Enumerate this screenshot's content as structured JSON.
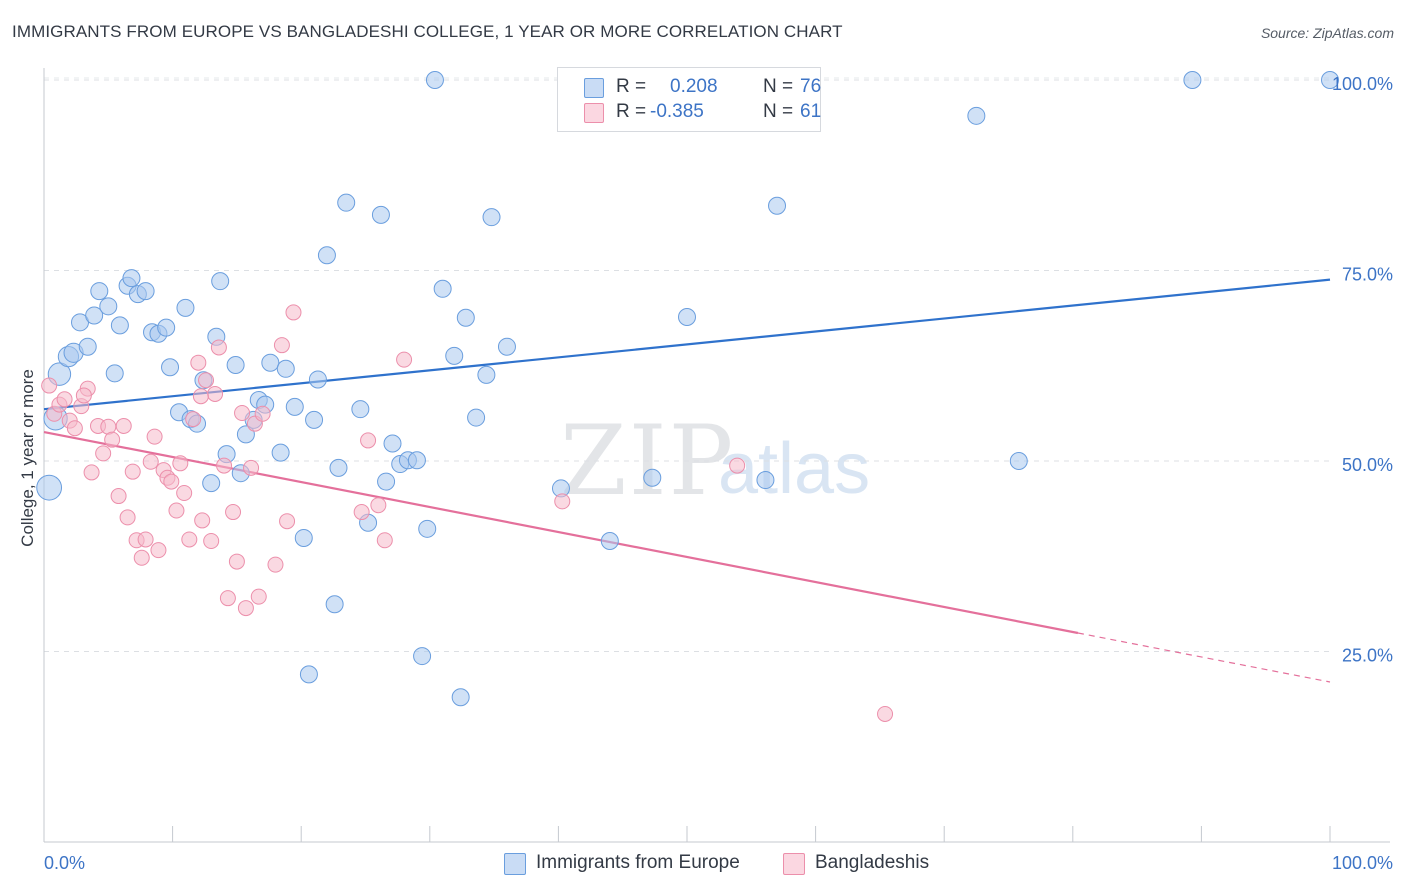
{
  "header": {
    "title": "IMMIGRANTS FROM EUROPE VS BANGLADESHI COLLEGE, 1 YEAR OR MORE CORRELATION CHART",
    "source": "Source: ZipAtlas.com"
  },
  "watermark": {
    "zip": "ZIP",
    "atlas": "atlas"
  },
  "legend": {
    "rows": [
      {
        "r_label": "R =",
        "r_value": "0.208",
        "n_label": "N =",
        "n_value": "76",
        "color": "#a9c8ef"
      },
      {
        "r_label": "R =",
        "r_value": "-0.385",
        "n_label": "N =",
        "n_value": "61",
        "color": "#f6b9ca"
      }
    ]
  },
  "bottom_legend": {
    "items": [
      {
        "label": "Immigrants from Europe",
        "color": "#a9c8ef"
      },
      {
        "label": "Bangladeshis",
        "color": "#f6b9ca"
      }
    ]
  },
  "chart_data": {
    "type": "scatter",
    "title": "IMMIGRANTS FROM EUROPE VS BANGLADESHI COLLEGE, 1 YEAR OR MORE CORRELATION CHART",
    "xlabel": "",
    "ylabel": "College, 1 year or more",
    "xlim": [
      0,
      100
    ],
    "ylim": [
      0,
      105
    ],
    "x_tick_labels": [
      "0.0%",
      "100.0%"
    ],
    "y_ticks": [
      {
        "value": 25,
        "label": "25.0%"
      },
      {
        "value": 50,
        "label": "50.0%"
      },
      {
        "value": 75,
        "label": "75.0%"
      },
      {
        "value": 100,
        "label": "100.0%"
      }
    ],
    "grid": true,
    "legend_position": "top-center",
    "series": [
      {
        "name": "Immigrants from Europe",
        "color": "#a9c8ef",
        "stroke": "#6a9ede",
        "trend_color": "#2f72cc",
        "trend": {
          "x0": 0,
          "y0": 56.8,
          "x1": 100,
          "y1": 73.8,
          "solid_until": 100
        },
        "points": [
          [
            0.4,
            46.5
          ],
          [
            0.9,
            55.6
          ],
          [
            1.2,
            61.4
          ],
          [
            1.9,
            63.7
          ],
          [
            2.3,
            64.2
          ],
          [
            3.4,
            65.0
          ],
          [
            2.8,
            68.2
          ],
          [
            3.9,
            69.1
          ],
          [
            5.0,
            70.3
          ],
          [
            4.3,
            72.3
          ],
          [
            5.5,
            61.5
          ],
          [
            5.9,
            67.8
          ],
          [
            6.5,
            73.0
          ],
          [
            6.8,
            74.0
          ],
          [
            7.3,
            71.9
          ],
          [
            7.9,
            72.3
          ],
          [
            8.4,
            66.9
          ],
          [
            8.9,
            66.7
          ],
          [
            9.5,
            67.5
          ],
          [
            9.8,
            62.3
          ],
          [
            10.5,
            56.4
          ],
          [
            11.0,
            70.1
          ],
          [
            11.4,
            55.5
          ],
          [
            11.9,
            54.9
          ],
          [
            12.4,
            60.6
          ],
          [
            13.0,
            47.1
          ],
          [
            13.4,
            66.3
          ],
          [
            13.7,
            73.6
          ],
          [
            14.2,
            50.9
          ],
          [
            14.9,
            62.6
          ],
          [
            15.3,
            48.4
          ],
          [
            15.7,
            53.5
          ],
          [
            16.3,
            55.4
          ],
          [
            16.7,
            58.0
          ],
          [
            17.2,
            57.4
          ],
          [
            17.6,
            62.9
          ],
          [
            18.4,
            51.1
          ],
          [
            18.8,
            62.1
          ],
          [
            19.5,
            57.1
          ],
          [
            20.2,
            39.9
          ],
          [
            20.6,
            22.0
          ],
          [
            21.0,
            55.4
          ],
          [
            21.3,
            60.7
          ],
          [
            22.0,
            77.0
          ],
          [
            22.6,
            31.2
          ],
          [
            22.9,
            49.1
          ],
          [
            23.5,
            83.9
          ],
          [
            24.6,
            56.8
          ],
          [
            25.2,
            41.9
          ],
          [
            26.2,
            82.3
          ],
          [
            26.6,
            47.3
          ],
          [
            27.1,
            52.3
          ],
          [
            27.7,
            49.6
          ],
          [
            28.3,
            50.1
          ],
          [
            29.0,
            50.1
          ],
          [
            29.4,
            24.4
          ],
          [
            29.8,
            41.1
          ],
          [
            30.4,
            100.0
          ],
          [
            31.0,
            72.6
          ],
          [
            31.9,
            63.8
          ],
          [
            32.4,
            19.0
          ],
          [
            32.8,
            68.8
          ],
          [
            33.6,
            55.7
          ],
          [
            34.4,
            61.3
          ],
          [
            34.8,
            82.0
          ],
          [
            36.0,
            65.0
          ],
          [
            40.2,
            46.4
          ],
          [
            44.0,
            39.5
          ],
          [
            47.3,
            47.8
          ],
          [
            50.0,
            68.9
          ],
          [
            56.1,
            47.5
          ],
          [
            57.0,
            83.5
          ],
          [
            72.5,
            95.3
          ],
          [
            75.8,
            50.0
          ],
          [
            89.3,
            100.0
          ],
          [
            100.0,
            100.0
          ]
        ]
      },
      {
        "name": "Bangladeshis",
        "color": "#f6b9ca",
        "stroke": "#ec8fab",
        "trend_color": "#e4709b",
        "trend": {
          "x0": 0,
          "y0": 53.8,
          "x1": 100,
          "y1": 21.0,
          "solid_until": 80.4
        },
        "points": [
          [
            0.4,
            59.9
          ],
          [
            0.8,
            56.2
          ],
          [
            1.2,
            57.4
          ],
          [
            1.6,
            58.1
          ],
          [
            2.0,
            55.3
          ],
          [
            2.4,
            54.3
          ],
          [
            2.9,
            57.2
          ],
          [
            3.4,
            59.5
          ],
          [
            3.7,
            48.5
          ],
          [
            4.2,
            54.6
          ],
          [
            4.6,
            51.0
          ],
          [
            5.0,
            54.5
          ],
          [
            5.3,
            52.8
          ],
          [
            5.8,
            45.4
          ],
          [
            6.2,
            54.6
          ],
          [
            6.5,
            42.6
          ],
          [
            6.9,
            48.6
          ],
          [
            7.2,
            39.6
          ],
          [
            7.6,
            37.3
          ],
          [
            7.9,
            39.7
          ],
          [
            8.3,
            49.9
          ],
          [
            8.6,
            53.2
          ],
          [
            8.9,
            38.3
          ],
          [
            9.3,
            48.8
          ],
          [
            9.6,
            47.8
          ],
          [
            9.9,
            47.3
          ],
          [
            10.3,
            43.5
          ],
          [
            10.6,
            49.7
          ],
          [
            10.9,
            45.8
          ],
          [
            11.3,
            39.7
          ],
          [
            11.6,
            55.5
          ],
          [
            12.0,
            62.9
          ],
          [
            12.3,
            42.2
          ],
          [
            12.6,
            60.6
          ],
          [
            13.0,
            39.5
          ],
          [
            13.3,
            58.8
          ],
          [
            13.6,
            64.9
          ],
          [
            14.0,
            49.4
          ],
          [
            14.3,
            32.0
          ],
          [
            14.7,
            43.3
          ],
          [
            15.0,
            36.8
          ],
          [
            15.4,
            56.3
          ],
          [
            15.7,
            30.7
          ],
          [
            16.1,
            49.1
          ],
          [
            16.4,
            54.9
          ],
          [
            16.7,
            32.2
          ],
          [
            17.0,
            56.2
          ],
          [
            18.0,
            36.4
          ],
          [
            18.5,
            65.2
          ],
          [
            18.9,
            42.1
          ],
          [
            19.4,
            69.5
          ],
          [
            24.7,
            43.3
          ],
          [
            25.2,
            52.7
          ],
          [
            26.0,
            44.2
          ],
          [
            26.5,
            39.6
          ],
          [
            28.0,
            63.3
          ],
          [
            40.3,
            44.7
          ],
          [
            53.9,
            49.4
          ],
          [
            65.4,
            16.8
          ],
          [
            12.2,
            58.5
          ],
          [
            3.1,
            58.6
          ]
        ]
      }
    ]
  }
}
